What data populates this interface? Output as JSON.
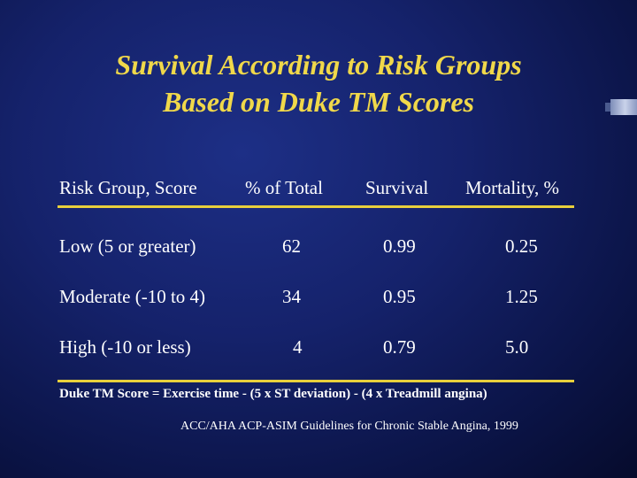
{
  "title": {
    "line1": "Survival According to Risk Groups",
    "line2": "Based on Duke TM Scores"
  },
  "table": {
    "headers": [
      "Risk Group, Score",
      "% of Total",
      "Survival",
      "Mortality, %"
    ],
    "rows": [
      [
        "Low (5 or greater)",
        "62",
        "0.99",
        "0.25"
      ],
      [
        "Moderate (-10 to 4)",
        "34",
        "0.95",
        "1.25"
      ],
      [
        "High (-10 or less)",
        "4",
        "0.79",
        "5.0"
      ]
    ]
  },
  "footnote": "Duke TM Score = Exercise time - (5 x ST deviation) - (4 x Treadmill angina)",
  "source": "ACC/AHA ACP-ASIM Guidelines for Chronic Stable Angina, 1999",
  "colors": {
    "title": "#f0d84a",
    "rule": "#e8cf3c",
    "text": "#ffffff",
    "background": "#15226b"
  }
}
